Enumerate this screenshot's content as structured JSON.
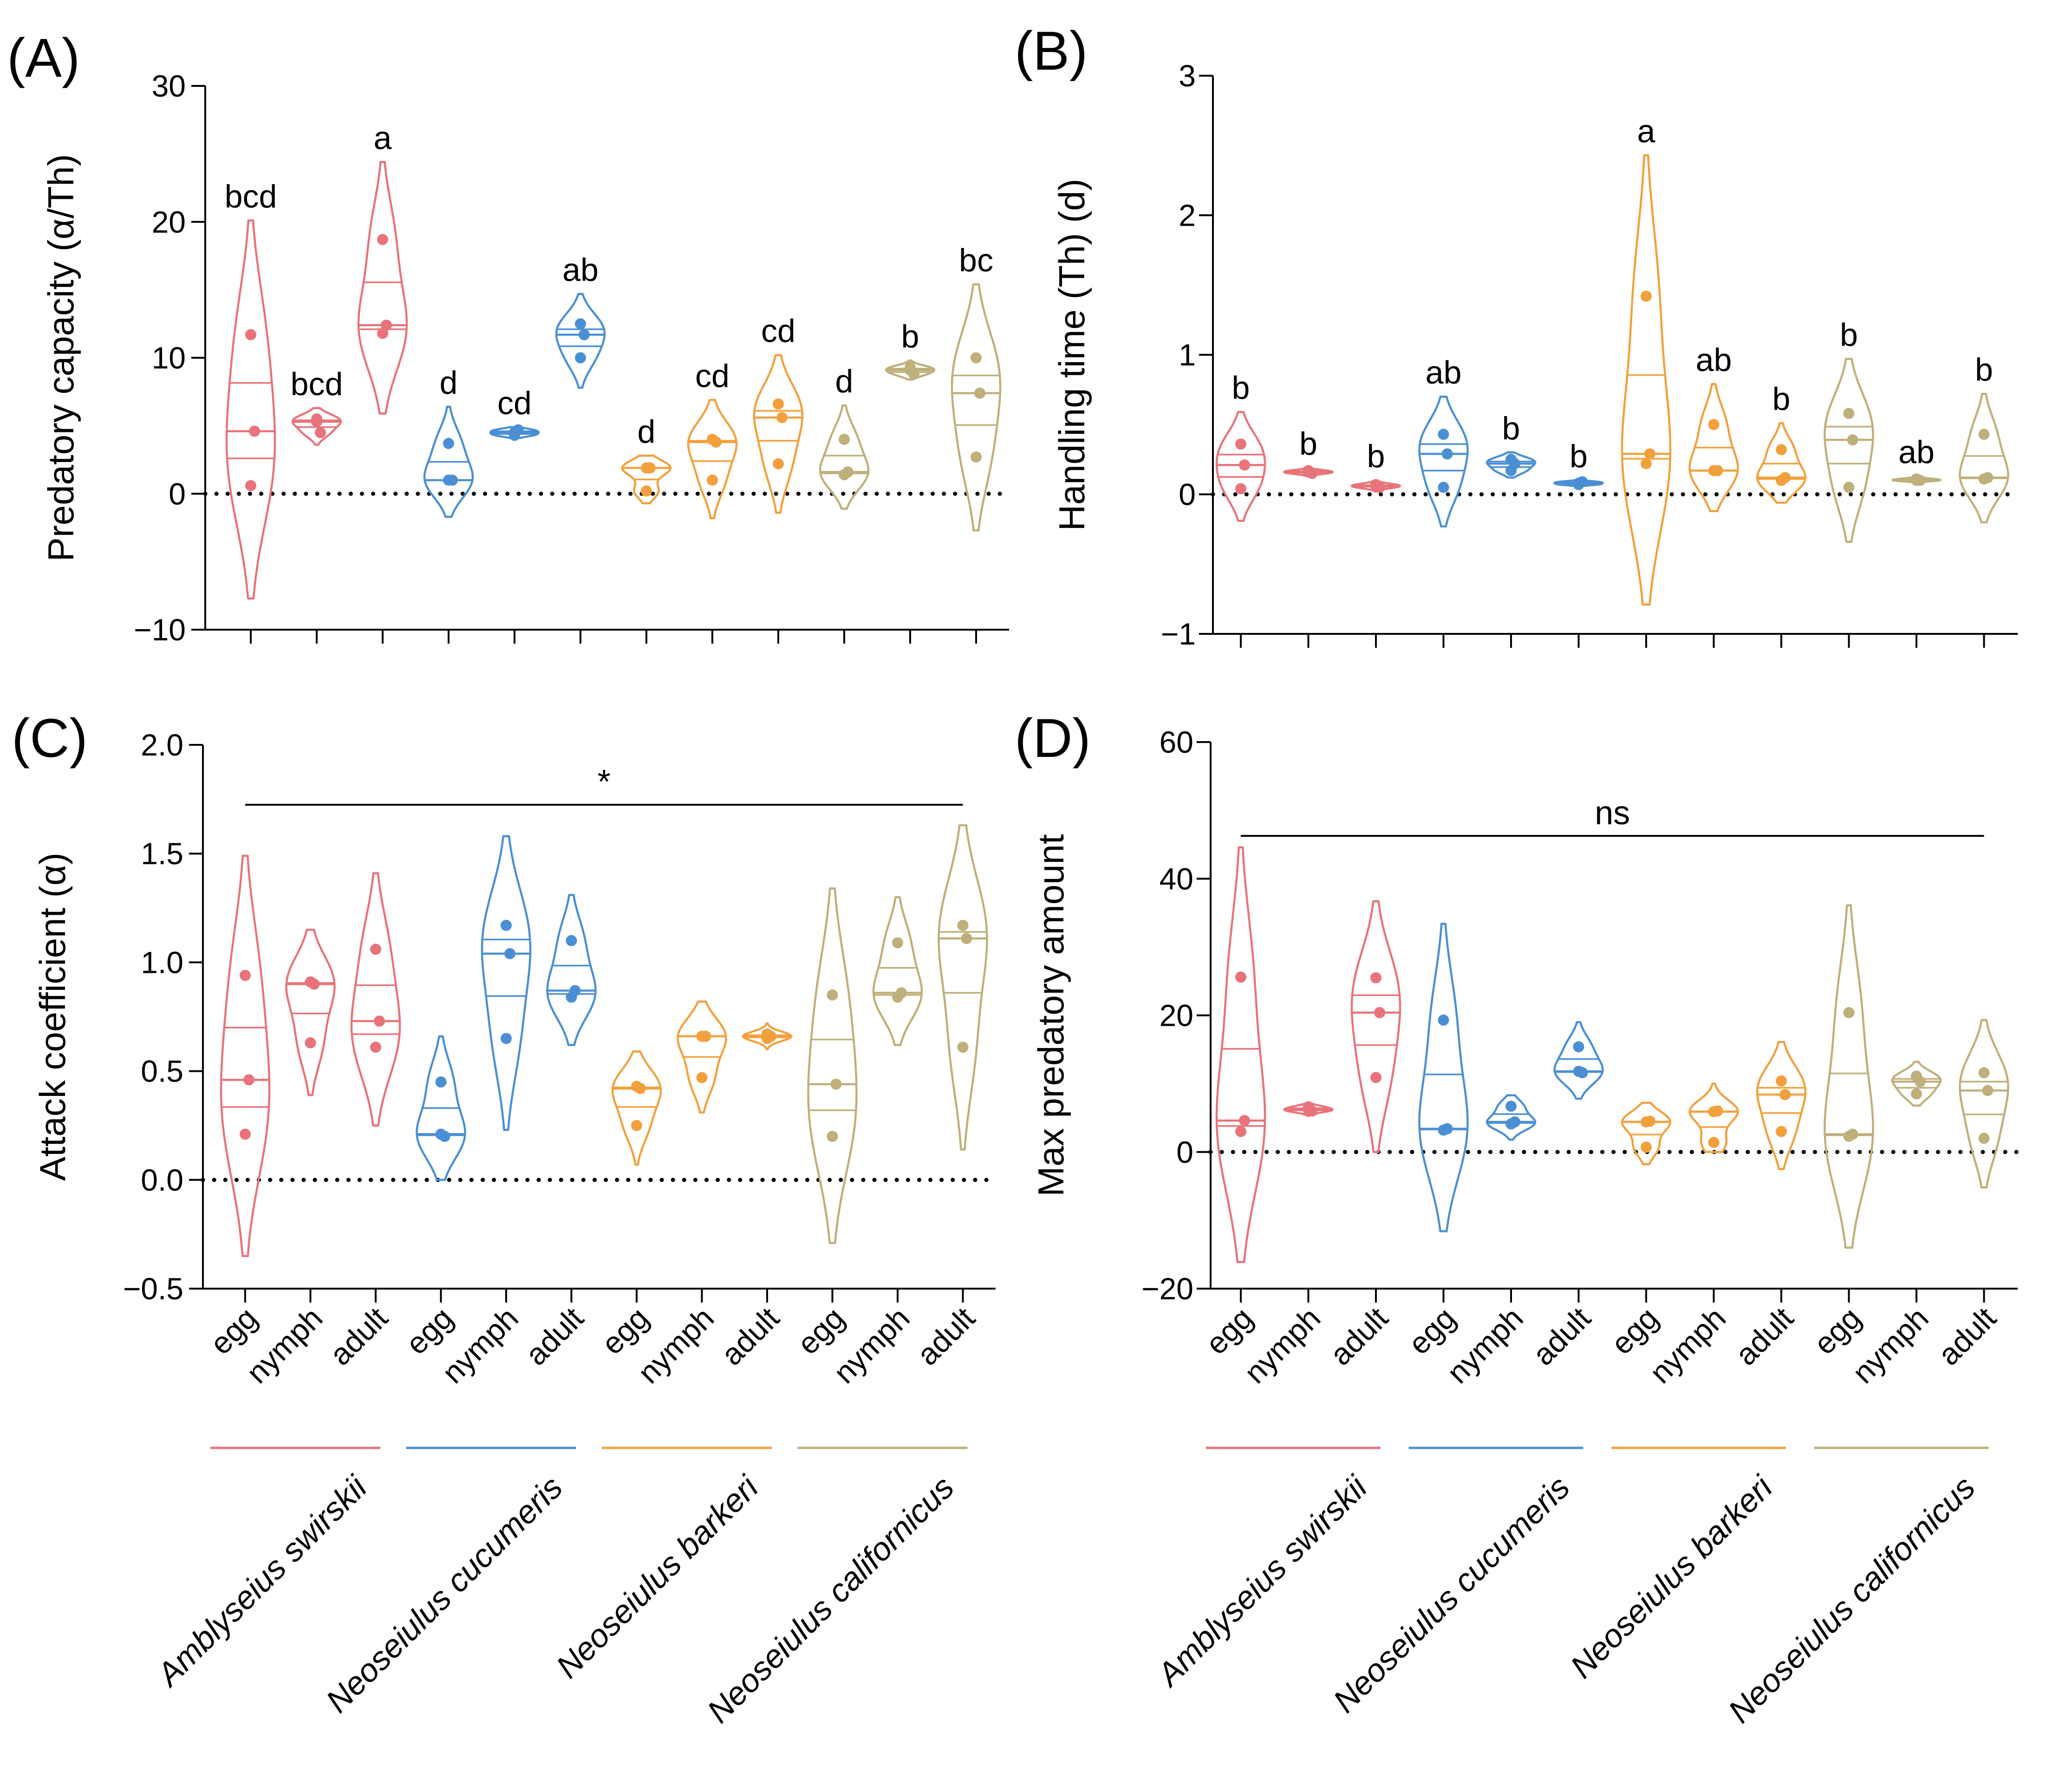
{
  "figure": {
    "categories": [
      "egg",
      "nymph",
      "adult",
      "egg",
      "nymph",
      "adult",
      "egg",
      "nymph",
      "adult",
      "egg",
      "nymph",
      "adult"
    ],
    "species": [
      {
        "name": "Amblyseius swirskii",
        "color": "#E8737A"
      },
      {
        "name": "Neoseiulus cucumeris",
        "color": "#4A8FD4"
      },
      {
        "name": "Neoseiulus barkeri",
        "color": "#F2A03D"
      },
      {
        "name": "Neoseiulus californicus",
        "color": "#BFAF7A"
      }
    ]
  },
  "chart_data": [
    {
      "type": "violin",
      "panel_label": "(A)",
      "title": "",
      "xlabel": "",
      "ylabel": "Predatory capacity (α/Th)",
      "ylim": [
        -10,
        30
      ],
      "yticks": [
        -10,
        0,
        10,
        20,
        30
      ],
      "ytick_labels": [
        "−10",
        "0",
        "10",
        "20",
        "30"
      ],
      "reference_line": 0,
      "groups": [
        {
          "species": "Amblyseius swirskii",
          "stage": "egg",
          "points": [
            11.7,
            4.6,
            0.6
          ],
          "violin_range": [
            -7.7,
            20.1
          ],
          "letter": "bcd"
        },
        {
          "species": "Amblyseius swirskii",
          "stage": "nymph",
          "points": [
            5.5,
            4.5,
            5.3
          ],
          "violin_range": [
            3.6,
            6.3
          ],
          "letter": "bcd"
        },
        {
          "species": "Amblyseius swirskii",
          "stage": "adult",
          "points": [
            18.7,
            12.4,
            11.8
          ],
          "violin_range": [
            5.9,
            24.4
          ],
          "letter": "a"
        },
        {
          "species": "Neoseiulus cucumeris",
          "stage": "egg",
          "points": [
            3.7,
            1.0,
            1.0
          ],
          "violin_range": [
            -1.7,
            6.4
          ],
          "letter": "d"
        },
        {
          "species": "Neoseiulus cucumeris",
          "stage": "nymph",
          "points": [
            4.5,
            4.7,
            4.3
          ],
          "violin_range": [
            4.1,
            4.9
          ],
          "letter": "cd"
        },
        {
          "species": "Neoseiulus cucumeris",
          "stage": "adult",
          "points": [
            12.5,
            11.7,
            10.0
          ],
          "violin_range": [
            7.8,
            14.7
          ],
          "letter": "ab"
        },
        {
          "species": "Neoseiulus barkeri",
          "stage": "egg",
          "points": [
            1.9,
            1.9,
            0.2
          ],
          "violin_range": [
            -0.7,
            2.8
          ],
          "letter": "d"
        },
        {
          "species": "Neoseiulus barkeri",
          "stage": "nymph",
          "points": [
            4.0,
            3.8,
            1.0
          ],
          "violin_range": [
            -1.8,
            6.9
          ],
          "letter": "cd"
        },
        {
          "species": "Neoseiulus barkeri",
          "stage": "adult",
          "points": [
            6.6,
            5.6,
            2.2
          ],
          "violin_range": [
            -1.4,
            10.2
          ],
          "letter": "cd"
        },
        {
          "species": "Neoseiulus californicus",
          "stage": "egg",
          "points": [
            4.0,
            1.6,
            1.4
          ],
          "violin_range": [
            -1.1,
            6.5
          ],
          "letter": "d"
        },
        {
          "species": "Neoseiulus californicus",
          "stage": "nymph",
          "points": [
            9.3,
            8.8,
            9.1
          ],
          "violin_range": [
            8.4,
            9.8
          ],
          "letter": "b"
        },
        {
          "species": "Neoseiulus californicus",
          "stage": "adult",
          "points": [
            10.0,
            7.4,
            2.7
          ],
          "violin_range": [
            -2.7,
            15.4
          ],
          "letter": "bc"
        }
      ]
    },
    {
      "type": "violin",
      "panel_label": "(B)",
      "title": "",
      "xlabel": "",
      "ylabel": "Handling time (Th) (d)",
      "ylim": [
        -1,
        3
      ],
      "yticks": [
        -1,
        0,
        1,
        2,
        3
      ],
      "ytick_labels": [
        "−1",
        "0",
        "1",
        "2",
        "3"
      ],
      "reference_line": 0,
      "groups": [
        {
          "species": "Amblyseius swirskii",
          "stage": "egg",
          "points": [
            0.36,
            0.21,
            0.04
          ],
          "violin_range": [
            -0.19,
            0.59
          ],
          "letter": "b"
        },
        {
          "species": "Amblyseius swirskii",
          "stage": "nymph",
          "points": [
            0.16,
            0.15,
            0.17
          ],
          "violin_range": [
            0.13,
            0.19
          ],
          "letter": "b"
        },
        {
          "species": "Amblyseius swirskii",
          "stage": "adult",
          "points": [
            0.07,
            0.05,
            0.06
          ],
          "violin_range": [
            0.02,
            0.1
          ],
          "letter": "b"
        },
        {
          "species": "Neoseiulus cucumeris",
          "stage": "egg",
          "points": [
            0.43,
            0.29,
            0.05
          ],
          "violin_range": [
            -0.23,
            0.7
          ],
          "letter": "ab"
        },
        {
          "species": "Neoseiulus cucumeris",
          "stage": "nymph",
          "points": [
            0.25,
            0.22,
            0.17
          ],
          "violin_range": [
            0.12,
            0.3
          ],
          "letter": "b"
        },
        {
          "species": "Neoseiulus cucumeris",
          "stage": "adult",
          "points": [
            0.08,
            0.09,
            0.07
          ],
          "violin_range": [
            0.06,
            0.1
          ],
          "letter": "b"
        },
        {
          "species": "Neoseiulus barkeri",
          "stage": "egg",
          "points": [
            1.42,
            0.29,
            0.22
          ],
          "violin_range": [
            -0.79,
            2.43
          ],
          "letter": "a"
        },
        {
          "species": "Neoseiulus barkeri",
          "stage": "nymph",
          "points": [
            0.5,
            0.17,
            0.17
          ],
          "violin_range": [
            -0.12,
            0.79
          ],
          "letter": "ab"
        },
        {
          "species": "Neoseiulus barkeri",
          "stage": "adult",
          "points": [
            0.32,
            0.12,
            0.1
          ],
          "violin_range": [
            -0.06,
            0.51
          ],
          "letter": "b"
        },
        {
          "species": "Neoseiulus californicus",
          "stage": "egg",
          "points": [
            0.58,
            0.39,
            0.05
          ],
          "violin_range": [
            -0.34,
            0.97
          ],
          "letter": "b"
        },
        {
          "species": "Neoseiulus californicus",
          "stage": "nymph",
          "points": [
            0.11,
            0.1,
            0.1
          ],
          "violin_range": [
            0.08,
            0.13
          ],
          "letter": "ab"
        },
        {
          "species": "Neoseiulus californicus",
          "stage": "adult",
          "points": [
            0.43,
            0.12,
            0.11
          ],
          "violin_range": [
            -0.2,
            0.72
          ],
          "letter": "b"
        }
      ]
    },
    {
      "type": "violin",
      "panel_label": "(C)",
      "title": "",
      "xlabel": "",
      "ylabel": "Attack coefficient (α)",
      "ylim": [
        -0.5,
        2.0
      ],
      "yticks": [
        -0.5,
        0,
        0.5,
        1,
        1.5,
        2
      ],
      "ytick_labels": [
        "−0.5",
        "0.0",
        "0.5",
        "1.0",
        "1.5",
        "2.0"
      ],
      "reference_line": 0,
      "significance": "*",
      "groups": [
        {
          "species": "Amblyseius swirskii",
          "stage": "egg",
          "points": [
            0.94,
            0.46,
            0.21
          ],
          "violin_range": [
            -0.35,
            1.49
          ]
        },
        {
          "species": "Amblyseius swirskii",
          "stage": "nymph",
          "points": [
            0.91,
            0.9,
            0.63
          ],
          "violin_range": [
            0.39,
            1.15
          ]
        },
        {
          "species": "Amblyseius swirskii",
          "stage": "adult",
          "points": [
            1.06,
            0.73,
            0.61
          ],
          "violin_range": [
            0.25,
            1.41
          ]
        },
        {
          "species": "Neoseiulus cucumeris",
          "stage": "egg",
          "points": [
            0.45,
            0.2,
            0.21
          ],
          "violin_range": [
            0.0,
            0.66
          ]
        },
        {
          "species": "Neoseiulus cucumeris",
          "stage": "nymph",
          "points": [
            1.17,
            1.04,
            0.65
          ],
          "violin_range": [
            0.23,
            1.58
          ]
        },
        {
          "species": "Neoseiulus cucumeris",
          "stage": "adult",
          "points": [
            1.1,
            0.87,
            0.84
          ],
          "violin_range": [
            0.62,
            1.31
          ]
        },
        {
          "species": "Neoseiulus barkeri",
          "stage": "egg",
          "points": [
            0.43,
            0.42,
            0.25
          ],
          "violin_range": [
            0.07,
            0.59
          ]
        },
        {
          "species": "Neoseiulus barkeri",
          "stage": "nymph",
          "points": [
            0.66,
            0.66,
            0.47
          ],
          "violin_range": [
            0.31,
            0.82
          ]
        },
        {
          "species": "Neoseiulus barkeri",
          "stage": "adult",
          "points": [
            0.67,
            0.66,
            0.65
          ],
          "violin_range": [
            0.6,
            0.72
          ]
        },
        {
          "species": "Neoseiulus californicus",
          "stage": "egg",
          "points": [
            0.85,
            0.44,
            0.2
          ],
          "violin_range": [
            -0.29,
            1.34
          ]
        },
        {
          "species": "Neoseiulus californicus",
          "stage": "nymph",
          "points": [
            1.09,
            0.86,
            0.84
          ],
          "violin_range": [
            0.62,
            1.3
          ]
        },
        {
          "species": "Neoseiulus californicus",
          "stage": "adult",
          "points": [
            1.17,
            1.11,
            0.61
          ],
          "violin_range": [
            0.14,
            1.63
          ]
        }
      ]
    },
    {
      "type": "violin",
      "panel_label": "(D)",
      "title": "",
      "xlabel": "",
      "ylabel": "Max predatory amount",
      "ylim": [
        -20,
        60
      ],
      "yticks": [
        -20,
        0,
        20,
        40,
        60
      ],
      "ytick_labels": [
        "−20",
        "0",
        "20",
        "40",
        "60"
      ],
      "reference_line": 0,
      "significance": "ns",
      "groups": [
        {
          "species": "Amblyseius swirskii",
          "stage": "egg",
          "points": [
            25.6,
            4.6,
            3.0
          ],
          "violin_range": [
            -16.1,
            44.6
          ]
        },
        {
          "species": "Amblyseius swirskii",
          "stage": "nymph",
          "points": [
            6.6,
            6.0,
            6.2
          ],
          "violin_range": [
            5.3,
            7.2
          ]
        },
        {
          "species": "Amblyseius swirskii",
          "stage": "adult",
          "points": [
            25.5,
            20.4,
            10.9
          ],
          "violin_range": [
            0.0,
            36.7
          ]
        },
        {
          "species": "Neoseiulus cucumeris",
          "stage": "egg",
          "points": [
            19.3,
            3.4,
            3.2
          ],
          "violin_range": [
            -11.6,
            33.4
          ]
        },
        {
          "species": "Neoseiulus cucumeris",
          "stage": "nymph",
          "points": [
            6.7,
            4.4,
            4.1
          ],
          "violin_range": [
            1.8,
            8.3
          ]
        },
        {
          "species": "Neoseiulus cucumeris",
          "stage": "adult",
          "points": [
            15.4,
            11.6,
            11.8
          ],
          "violin_range": [
            7.8,
            19.0
          ]
        },
        {
          "species": "Neoseiulus barkeri",
          "stage": "egg",
          "points": [
            4.4,
            4.5,
            0.7
          ],
          "violin_range": [
            -1.8,
            7.2
          ]
        },
        {
          "species": "Neoseiulus barkeri",
          "stage": "nymph",
          "points": [
            5.9,
            6.0,
            1.4
          ],
          "violin_range": [
            0.0,
            10.0
          ]
        },
        {
          "species": "Neoseiulus barkeri",
          "stage": "adult",
          "points": [
            10.4,
            8.4,
            3.0
          ],
          "violin_range": [
            -2.5,
            16.1
          ]
        },
        {
          "species": "Neoseiulus californicus",
          "stage": "egg",
          "points": [
            20.4,
            2.6,
            2.3
          ],
          "violin_range": [
            -14.0,
            36.1
          ]
        },
        {
          "species": "Neoseiulus californicus",
          "stage": "nymph",
          "points": [
            11.1,
            10.3,
            8.5
          ],
          "violin_range": [
            6.8,
            13.2
          ]
        },
        {
          "species": "Neoseiulus californicus",
          "stage": "adult",
          "points": [
            11.6,
            9.0,
            2.0
          ],
          "violin_range": [
            -5.2,
            19.3
          ]
        }
      ]
    }
  ]
}
